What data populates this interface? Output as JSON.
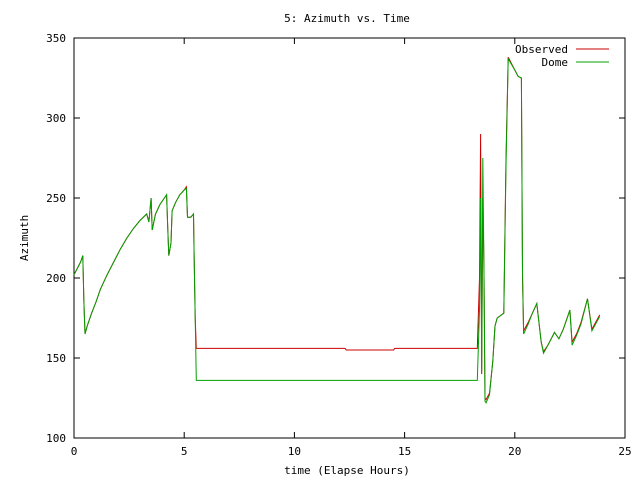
{
  "chart_data": {
    "type": "line",
    "title": "5: Azimuth vs. Time",
    "xlabel": "time (Elapse Hours)",
    "ylabel": "Azimuth",
    "xlim": [
      0,
      25
    ],
    "ylim": [
      100,
      350
    ],
    "xticks": [
      0,
      5,
      10,
      15,
      20,
      25
    ],
    "yticks": [
      100,
      150,
      200,
      250,
      300,
      350
    ],
    "grid": false,
    "legend_position": "top-right",
    "series": [
      {
        "name": "Observed",
        "color": "#cc0000",
        "points": [
          [
            0.0,
            202
          ],
          [
            0.15,
            206
          ],
          [
            0.3,
            210
          ],
          [
            0.4,
            214
          ],
          [
            0.45,
            185
          ],
          [
            0.5,
            165
          ],
          [
            0.6,
            170
          ],
          [
            0.8,
            178
          ],
          [
            1.0,
            185
          ],
          [
            1.2,
            193
          ],
          [
            1.5,
            202
          ],
          [
            1.8,
            210
          ],
          [
            2.1,
            218
          ],
          [
            2.4,
            225
          ],
          [
            2.7,
            231
          ],
          [
            3.0,
            236
          ],
          [
            3.3,
            240
          ],
          [
            3.4,
            235
          ],
          [
            3.5,
            250
          ],
          [
            3.55,
            230
          ],
          [
            3.7,
            240
          ],
          [
            3.9,
            246
          ],
          [
            4.1,
            250
          ],
          [
            4.2,
            252
          ],
          [
            4.25,
            232
          ],
          [
            4.3,
            214
          ],
          [
            4.4,
            222
          ],
          [
            4.45,
            242
          ],
          [
            4.6,
            247
          ],
          [
            4.8,
            252
          ],
          [
            5.0,
            255
          ],
          [
            5.1,
            257
          ],
          [
            5.15,
            238
          ],
          [
            5.3,
            238
          ],
          [
            5.42,
            240
          ],
          [
            5.45,
            215
          ],
          [
            5.5,
            175
          ],
          [
            5.55,
            156
          ],
          [
            7.0,
            156
          ],
          [
            9.0,
            156
          ],
          [
            12.3,
            156
          ],
          [
            12.35,
            155
          ],
          [
            14.5,
            155
          ],
          [
            14.55,
            156
          ],
          [
            16.0,
            156
          ],
          [
            18.3,
            156
          ],
          [
            18.4,
            200
          ],
          [
            18.45,
            290
          ],
          [
            18.5,
            140
          ],
          [
            18.55,
            250
          ],
          [
            18.6,
            210
          ],
          [
            18.65,
            125
          ],
          [
            18.7,
            124
          ],
          [
            18.85,
            128
          ],
          [
            19.0,
            148
          ],
          [
            19.1,
            170
          ],
          [
            19.2,
            175
          ],
          [
            19.5,
            178
          ],
          [
            19.6,
            275
          ],
          [
            19.7,
            338
          ],
          [
            20.0,
            330
          ],
          [
            20.15,
            326
          ],
          [
            20.3,
            325
          ],
          [
            20.35,
            200
          ],
          [
            20.4,
            167
          ],
          [
            20.6,
            172
          ],
          [
            20.8,
            178
          ],
          [
            21.0,
            184
          ],
          [
            21.2,
            160
          ],
          [
            21.3,
            154
          ],
          [
            21.5,
            158
          ],
          [
            21.8,
            166
          ],
          [
            22.0,
            162
          ],
          [
            22.2,
            168
          ],
          [
            22.4,
            176
          ],
          [
            22.5,
            180
          ],
          [
            22.6,
            160
          ],
          [
            22.8,
            165
          ],
          [
            23.0,
            172
          ],
          [
            23.3,
            187
          ],
          [
            23.5,
            168
          ],
          [
            23.7,
            173
          ],
          [
            23.85,
            177
          ]
        ]
      },
      {
        "name": "Dome",
        "color": "#00a000",
        "points": [
          [
            0.0,
            202
          ],
          [
            0.15,
            206
          ],
          [
            0.3,
            210
          ],
          [
            0.4,
            214
          ],
          [
            0.45,
            185
          ],
          [
            0.5,
            165
          ],
          [
            0.6,
            170
          ],
          [
            0.8,
            178
          ],
          [
            1.0,
            185
          ],
          [
            1.2,
            193
          ],
          [
            1.5,
            202
          ],
          [
            1.8,
            210
          ],
          [
            2.1,
            218
          ],
          [
            2.4,
            225
          ],
          [
            2.7,
            231
          ],
          [
            3.0,
            236
          ],
          [
            3.3,
            240
          ],
          [
            3.4,
            235
          ],
          [
            3.5,
            250
          ],
          [
            3.55,
            230
          ],
          [
            3.7,
            240
          ],
          [
            3.9,
            246
          ],
          [
            4.1,
            250
          ],
          [
            4.2,
            252
          ],
          [
            4.25,
            232
          ],
          [
            4.3,
            214
          ],
          [
            4.4,
            222
          ],
          [
            4.45,
            242
          ],
          [
            4.6,
            247
          ],
          [
            4.8,
            252
          ],
          [
            5.0,
            255
          ],
          [
            5.1,
            256
          ],
          [
            5.15,
            238
          ],
          [
            5.3,
            238
          ],
          [
            5.42,
            240
          ],
          [
            5.45,
            215
          ],
          [
            5.5,
            175
          ],
          [
            5.55,
            136
          ],
          [
            7.0,
            136
          ],
          [
            10.0,
            136
          ],
          [
            14.0,
            136
          ],
          [
            18.3,
            136
          ],
          [
            18.4,
            180
          ],
          [
            18.45,
            250
          ],
          [
            18.5,
            142
          ],
          [
            18.55,
            275
          ],
          [
            18.6,
            210
          ],
          [
            18.65,
            123
          ],
          [
            18.7,
            122
          ],
          [
            18.85,
            127
          ],
          [
            19.0,
            148
          ],
          [
            19.1,
            170
          ],
          [
            19.2,
            175
          ],
          [
            19.5,
            178
          ],
          [
            19.6,
            270
          ],
          [
            19.7,
            337
          ],
          [
            20.0,
            330
          ],
          [
            20.15,
            326
          ],
          [
            20.3,
            325
          ],
          [
            20.35,
            205
          ],
          [
            20.4,
            165
          ],
          [
            20.6,
            171
          ],
          [
            20.8,
            178
          ],
          [
            21.0,
            184
          ],
          [
            21.2,
            160
          ],
          [
            21.3,
            153
          ],
          [
            21.5,
            158
          ],
          [
            21.8,
            166
          ],
          [
            22.0,
            162
          ],
          [
            22.2,
            168
          ],
          [
            22.4,
            176
          ],
          [
            22.5,
            180
          ],
          [
            22.6,
            158
          ],
          [
            22.8,
            164
          ],
          [
            23.0,
            171
          ],
          [
            23.3,
            187
          ],
          [
            23.5,
            167
          ],
          [
            23.7,
            172
          ],
          [
            23.85,
            176
          ]
        ]
      }
    ]
  }
}
